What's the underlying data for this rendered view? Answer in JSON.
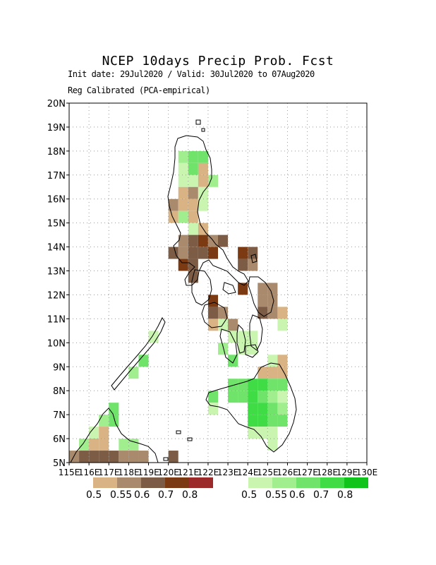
{
  "header": {
    "title": "NCEP 10days Precip Prob. Fcst",
    "subtitle": "Init date: 29Jul2020 / Valid: 30Jul2020 to 07Aug2020",
    "method": "Reg Calibrated (PCA-empirical)"
  },
  "axes": {
    "lat_labels": [
      "5N",
      "6N",
      "7N",
      "8N",
      "9N",
      "10N",
      "11N",
      "12N",
      "13N",
      "14N",
      "15N",
      "16N",
      "17N",
      "18N",
      "19N",
      "20N"
    ],
    "lon_labels": [
      "115E",
      "116E",
      "117E",
      "118E",
      "119E",
      "120E",
      "121E",
      "122E",
      "123E",
      "124E",
      "125E",
      "126E",
      "127E",
      "128E",
      "129E",
      "130E"
    ],
    "lat_range": [
      5,
      20
    ],
    "lon_range": [
      115,
      130
    ]
  },
  "legend": {
    "dry": {
      "colors": [
        "#d9b383",
        "#a98a6c",
        "#7c5c45",
        "#7b3a12",
        "#9c2a2a"
      ],
      "labels": [
        "0.5",
        "0.55",
        "0.6",
        "0.7",
        "0.8"
      ]
    },
    "wet": {
      "colors": [
        "#c9f5b0",
        "#a0ee8e",
        "#70e46a",
        "#3fdc45",
        "#10c41c"
      ],
      "labels": [
        "0.5",
        "0.55",
        "0.6",
        "0.7",
        "0.8"
      ]
    }
  },
  "grid_cells": {
    "cell_size_deg": 0.5,
    "cells": [
      [
        120.75,
        17.75,
        "g2"
      ],
      [
        121.25,
        17.75,
        "g3"
      ],
      [
        121.75,
        17.75,
        "g3"
      ],
      [
        120.75,
        17.25,
        "g1"
      ],
      [
        121.25,
        17.25,
        "g3"
      ],
      [
        121.75,
        17.25,
        "d1"
      ],
      [
        120.75,
        16.75,
        "g1"
      ],
      [
        121.25,
        16.75,
        "g1"
      ],
      [
        121.75,
        16.75,
        "d1"
      ],
      [
        122.25,
        16.75,
        "g2"
      ],
      [
        120.75,
        16.25,
        "d1"
      ],
      [
        121.25,
        16.25,
        "d2"
      ],
      [
        121.75,
        16.25,
        "g1"
      ],
      [
        120.25,
        15.75,
        "d2"
      ],
      [
        120.75,
        15.75,
        "d1"
      ],
      [
        121.25,
        15.75,
        "d1"
      ],
      [
        121.75,
        15.75,
        "g1"
      ],
      [
        120.25,
        15.25,
        "d1"
      ],
      [
        120.75,
        15.25,
        "g2"
      ],
      [
        121.25,
        15.25,
        "d1"
      ],
      [
        121.25,
        14.75,
        "g1"
      ],
      [
        121.75,
        14.75,
        "d1"
      ],
      [
        120.75,
        14.25,
        "d2"
      ],
      [
        121.25,
        14.25,
        "d3"
      ],
      [
        121.75,
        14.25,
        "d4"
      ],
      [
        122.25,
        14.25,
        "d2"
      ],
      [
        122.75,
        14.25,
        "d3"
      ],
      [
        120.25,
        13.75,
        "d3"
      ],
      [
        120.75,
        13.75,
        "d2"
      ],
      [
        121.25,
        13.75,
        "d3"
      ],
      [
        121.75,
        13.75,
        "d3"
      ],
      [
        122.25,
        13.75,
        "d4"
      ],
      [
        123.75,
        13.75,
        "d4"
      ],
      [
        124.25,
        13.75,
        "d3"
      ],
      [
        120.75,
        13.25,
        "d4"
      ],
      [
        121.25,
        13.25,
        "d3"
      ],
      [
        123.75,
        13.25,
        "d3"
      ],
      [
        124.25,
        13.25,
        "d2"
      ],
      [
        121.25,
        12.75,
        "d3"
      ],
      [
        123.75,
        12.25,
        "d4"
      ],
      [
        124.75,
        12.25,
        "d2"
      ],
      [
        125.25,
        12.25,
        "d2"
      ],
      [
        122.25,
        11.75,
        "d4"
      ],
      [
        124.75,
        11.75,
        "d2"
      ],
      [
        125.25,
        11.75,
        "d2"
      ],
      [
        122.25,
        11.25,
        "d3"
      ],
      [
        122.75,
        11.25,
        "d2"
      ],
      [
        124.75,
        11.25,
        "d3"
      ],
      [
        125.25,
        11.25,
        "d2"
      ],
      [
        125.75,
        11.25,
        "d1"
      ],
      [
        122.25,
        10.75,
        "d1"
      ],
      [
        122.75,
        10.75,
        "g1"
      ],
      [
        123.25,
        10.75,
        "d2"
      ],
      [
        125.75,
        10.75,
        "g1"
      ],
      [
        123.25,
        10.25,
        "g1"
      ],
      [
        123.75,
        10.25,
        "g1"
      ],
      [
        124.25,
        10.25,
        "g1"
      ],
      [
        122.75,
        9.75,
        "g2"
      ],
      [
        123.75,
        9.75,
        "g1"
      ],
      [
        124.25,
        9.75,
        "g1"
      ],
      [
        123.25,
        9.25,
        "g3"
      ],
      [
        125.25,
        9.25,
        "g1"
      ],
      [
        125.75,
        9.25,
        "d1"
      ],
      [
        124.75,
        8.75,
        "d1"
      ],
      [
        125.25,
        8.75,
        "d1"
      ],
      [
        125.75,
        8.75,
        "d1"
      ],
      [
        123.25,
        8.25,
        "g3"
      ],
      [
        123.75,
        8.25,
        "g3"
      ],
      [
        124.25,
        8.25,
        "g4"
      ],
      [
        124.75,
        8.25,
        "g4"
      ],
      [
        125.25,
        8.25,
        "g3"
      ],
      [
        125.75,
        8.25,
        "g3"
      ],
      [
        122.25,
        7.75,
        "g3"
      ],
      [
        123.25,
        7.75,
        "g3"
      ],
      [
        123.75,
        7.75,
        "g3"
      ],
      [
        124.25,
        7.75,
        "g4"
      ],
      [
        124.75,
        7.75,
        "g3"
      ],
      [
        125.25,
        7.75,
        "g2"
      ],
      [
        125.75,
        7.75,
        "g1"
      ],
      [
        122.25,
        7.25,
        "g1"
      ],
      [
        124.25,
        7.25,
        "g4"
      ],
      [
        124.75,
        7.25,
        "g4"
      ],
      [
        125.25,
        7.25,
        "g3"
      ],
      [
        125.75,
        7.25,
        "g2"
      ],
      [
        124.25,
        6.75,
        "g4"
      ],
      [
        124.75,
        6.75,
        "g4"
      ],
      [
        125.25,
        6.75,
        "g3"
      ],
      [
        125.75,
        6.75,
        "g3"
      ],
      [
        124.25,
        6.25,
        "g1"
      ],
      [
        124.75,
        6.25,
        "g1"
      ],
      [
        125.25,
        6.25,
        "g1"
      ],
      [
        125.25,
        5.75,
        "g1"
      ],
      [
        119.25,
        10.25,
        "g1"
      ],
      [
        118.75,
        9.25,
        "g3"
      ],
      [
        118.25,
        8.75,
        "g2"
      ],
      [
        117.25,
        7.25,
        "g3"
      ],
      [
        117.25,
        6.75,
        "g3"
      ],
      [
        116.75,
        6.75,
        "g2"
      ],
      [
        116.25,
        6.25,
        "g1"
      ],
      [
        116.75,
        6.25,
        "d1"
      ],
      [
        115.75,
        5.75,
        "g2"
      ],
      [
        116.25,
        5.75,
        "d1"
      ],
      [
        116.75,
        5.75,
        "d1"
      ],
      [
        117.75,
        5.75,
        "g2"
      ],
      [
        118.25,
        5.75,
        "g2"
      ],
      [
        115.25,
        5.25,
        "d2"
      ],
      [
        115.75,
        5.25,
        "d3"
      ],
      [
        116.25,
        5.25,
        "d3"
      ],
      [
        116.75,
        5.25,
        "d3"
      ],
      [
        117.25,
        5.25,
        "d3"
      ],
      [
        117.75,
        5.25,
        "d2"
      ],
      [
        118.25,
        5.25,
        "d2"
      ],
      [
        118.75,
        5.25,
        "d2"
      ],
      [
        120.25,
        5.25,
        "d3"
      ]
    ]
  }
}
